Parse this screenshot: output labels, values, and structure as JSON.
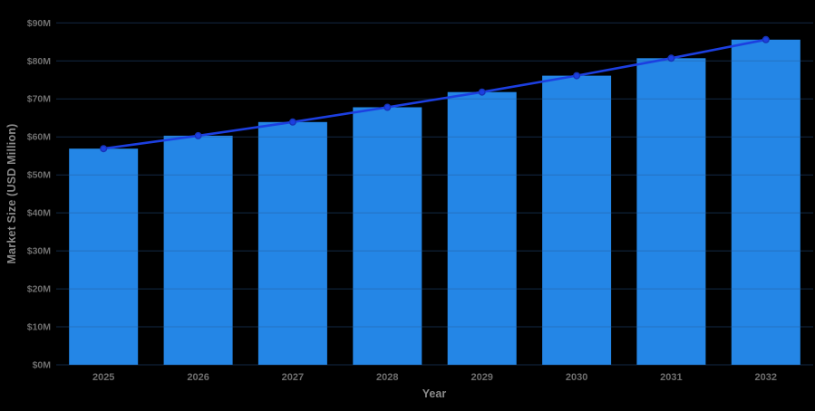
{
  "chart_data": {
    "type": "bar",
    "overlay_line": true,
    "title": "",
    "xlabel": "Year",
    "ylabel": "Market Size (USD Million)",
    "categories": [
      "2025",
      "2026",
      "2027",
      "2028",
      "2029",
      "2030",
      "2031",
      "2032"
    ],
    "values": [
      56.9,
      60.3,
      63.9,
      67.8,
      71.8,
      76.1,
      80.7,
      85.6
    ],
    "unit": "USD Million",
    "ylim": [
      0,
      90
    ],
    "ytick_step": 10,
    "yticks": [
      "$0M",
      "$10M",
      "$20M",
      "$30M",
      "$40M",
      "$50M",
      "$60M",
      "$70M",
      "$80M",
      "$90M"
    ],
    "grid": true,
    "legend_position": "none"
  },
  "colors": {
    "background": "#000000",
    "bar": "#2486E6",
    "trend_line": "#1C3FE0",
    "marker_fill": "#1C3FE0",
    "marker_stroke": "#1733B8",
    "gridline": "rgba(40,90,150,0.45)",
    "tick_label": "#6F6F6F",
    "axis_title": "#8A8A8A"
  }
}
